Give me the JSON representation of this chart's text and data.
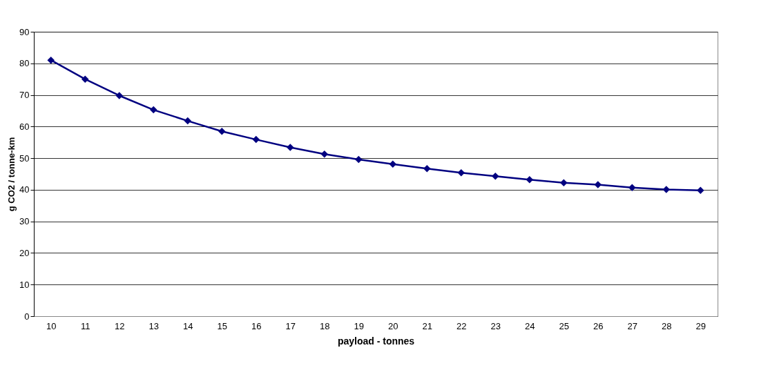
{
  "chart_data": {
    "type": "line",
    "xlabel": "payload - tonnes",
    "ylabel": "g CO2 / tonne-km",
    "categories": [
      "10",
      "11",
      "12",
      "13",
      "14",
      "15",
      "16",
      "17",
      "18",
      "19",
      "20",
      "21",
      "22",
      "23",
      "24",
      "25",
      "26",
      "27",
      "28",
      "29"
    ],
    "series": [
      {
        "color": "#000080",
        "values": [
          81,
          75,
          69.8,
          65.3,
          61.8,
          58.5,
          55.9,
          53.4,
          51.3,
          49.6,
          48.1,
          46.7,
          45.4,
          44.3,
          43.2,
          42.2,
          41.6,
          40.7,
          40.1,
          39.8
        ]
      }
    ],
    "ylim": [
      0,
      90
    ],
    "yticks": [
      0,
      10,
      20,
      30,
      40,
      50,
      60,
      70,
      80,
      90
    ],
    "grid": "y",
    "marker": "diamond",
    "line_style": "solid"
  }
}
